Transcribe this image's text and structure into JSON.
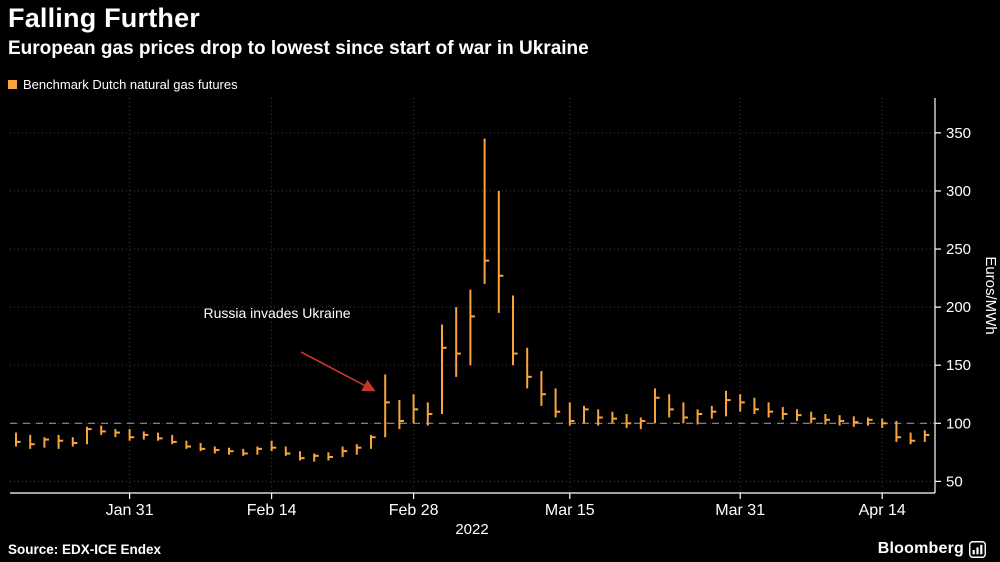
{
  "header": {
    "title": "Falling Further",
    "subtitle": "European gas prices drop to lowest since start of war in Ukraine"
  },
  "legend": {
    "label": "Benchmark Dutch natural gas futures",
    "color": "#F9A43F"
  },
  "annotation": {
    "text": "Russia invades Ukraine",
    "arrow_color": "#C5362B",
    "target_bar_index": 26
  },
  "footer": {
    "source": "Source: EDX-ICE Endex",
    "brand": "Bloomberg"
  },
  "chart_data": {
    "type": "bar",
    "subtype": "hlc-price-bars",
    "title": "Falling Further",
    "subtitle": "European gas prices drop to lowest since start of war in Ukraine",
    "xlabel": "2022",
    "ylabel": "Euros/MWh",
    "ylim": [
      40,
      380
    ],
    "yticks": [
      50,
      100,
      150,
      200,
      250,
      300,
      350
    ],
    "grid": true,
    "legend_position": "top-left",
    "reference_line": 100,
    "xticks": [
      {
        "label": "Jan 31",
        "index": 8
      },
      {
        "label": "Feb 14",
        "index": 18
      },
      {
        "label": "Feb 28",
        "index": 28
      },
      {
        "label": "Mar 15",
        "index": 39
      },
      {
        "label": "Mar 31",
        "index": 51
      },
      {
        "label": "Apr 14",
        "index": 61
      }
    ],
    "series": [
      {
        "name": "Benchmark Dutch natural gas futures",
        "color": "#F9A43F",
        "bar_format": [
          "high",
          "low",
          "close"
        ],
        "bars": [
          [
            92,
            80,
            84
          ],
          [
            90,
            78,
            82
          ],
          [
            88,
            79,
            86
          ],
          [
            90,
            78,
            85
          ],
          [
            88,
            80,
            83
          ],
          [
            97,
            82,
            95
          ],
          [
            98,
            90,
            93
          ],
          [
            95,
            88,
            92
          ],
          [
            95,
            85,
            88
          ],
          [
            93,
            86,
            90
          ],
          [
            92,
            85,
            87
          ],
          [
            90,
            82,
            84
          ],
          [
            85,
            78,
            80
          ],
          [
            83,
            76,
            78
          ],
          [
            80,
            74,
            77
          ],
          [
            79,
            73,
            76
          ],
          [
            78,
            72,
            74
          ],
          [
            80,
            73,
            78
          ],
          [
            85,
            76,
            79
          ],
          [
            80,
            72,
            74
          ],
          [
            76,
            68,
            70
          ],
          [
            74,
            67,
            72
          ],
          [
            75,
            68,
            71
          ],
          [
            80,
            71,
            76
          ],
          [
            82,
            73,
            79
          ],
          [
            90,
            78,
            88
          ],
          [
            142,
            88,
            118
          ],
          [
            120,
            95,
            102
          ],
          [
            125,
            100,
            112
          ],
          [
            118,
            98,
            108
          ],
          [
            185,
            108,
            165
          ],
          [
            200,
            140,
            160
          ],
          [
            215,
            150,
            192
          ],
          [
            345,
            220,
            240
          ],
          [
            300,
            195,
            227
          ],
          [
            210,
            150,
            160
          ],
          [
            165,
            130,
            140
          ],
          [
            145,
            115,
            125
          ],
          [
            130,
            105,
            110
          ],
          [
            118,
            98,
            102
          ],
          [
            115,
            100,
            112
          ],
          [
            112,
            98,
            105
          ],
          [
            110,
            100,
            104
          ],
          [
            108,
            96,
            100
          ],
          [
            105,
            95,
            102
          ],
          [
            130,
            100,
            122
          ],
          [
            125,
            105,
            112
          ],
          [
            118,
            100,
            105
          ],
          [
            112,
            99,
            108
          ],
          [
            115,
            104,
            110
          ],
          [
            128,
            106,
            120
          ],
          [
            125,
            110,
            118
          ],
          [
            122,
            108,
            112
          ],
          [
            118,
            105,
            110
          ],
          [
            114,
            103,
            108
          ],
          [
            112,
            102,
            107
          ],
          [
            110,
            100,
            104
          ],
          [
            108,
            99,
            103
          ],
          [
            107,
            98,
            102
          ],
          [
            106,
            97,
            101
          ],
          [
            105,
            98,
            103
          ],
          [
            104,
            96,
            100
          ],
          [
            102,
            84,
            88
          ],
          [
            92,
            82,
            85
          ],
          [
            94,
            84,
            90
          ]
        ]
      }
    ]
  }
}
